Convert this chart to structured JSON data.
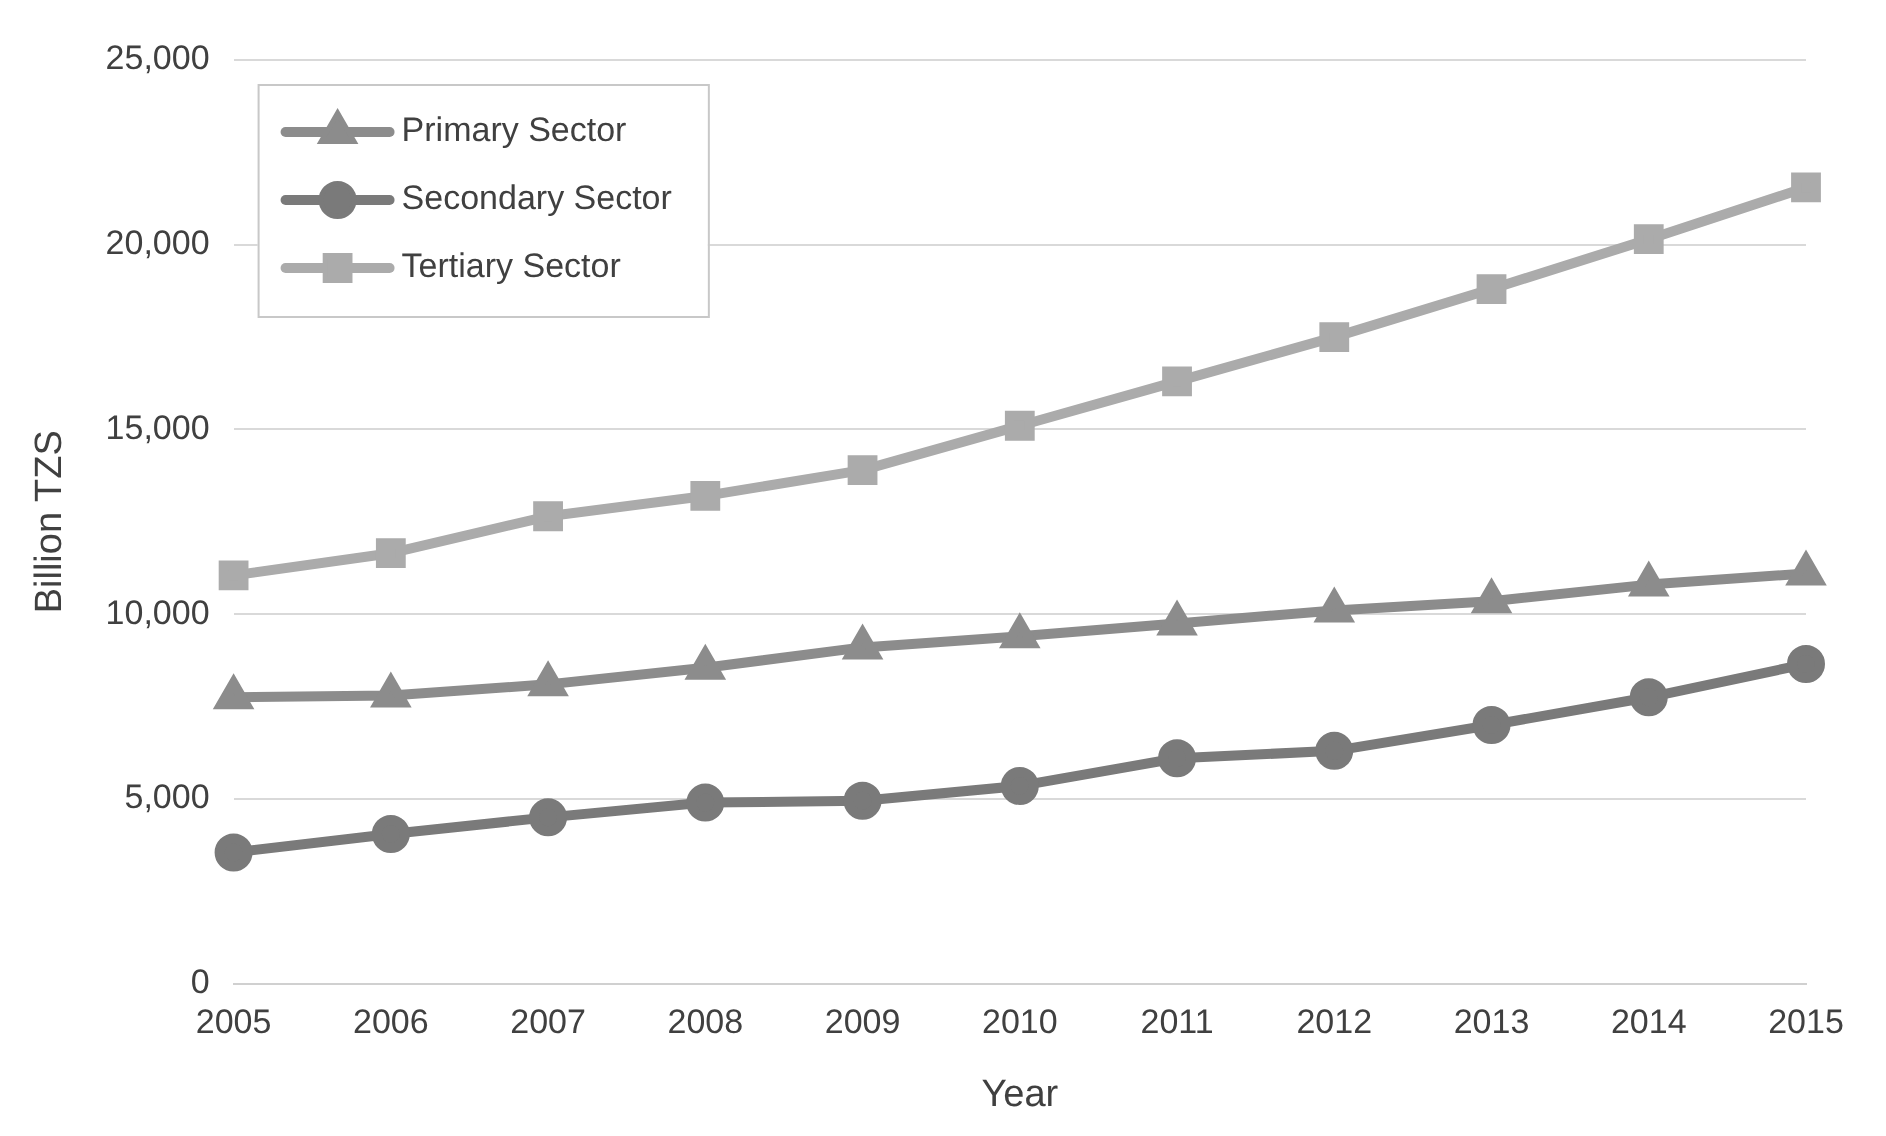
{
  "chart_data": {
    "type": "line",
    "xlabel": "Year",
    "ylabel": "Billion TZS",
    "categories": [
      "2005",
      "2006",
      "2007",
      "2008",
      "2009",
      "2010",
      "2011",
      "2012",
      "2013",
      "2014",
      "2015"
    ],
    "series": [
      {
        "name": "Primary Sector",
        "color": "#8c8c8c",
        "marker": "triangle",
        "values": [
          7750,
          7800,
          8100,
          8550,
          9100,
          9400,
          9750,
          10100,
          10350,
          10800,
          11100
        ]
      },
      {
        "name": "Secondary Sector",
        "color": "#7a7a7a",
        "marker": "circle",
        "values": [
          3550,
          4050,
          4500,
          4900,
          4950,
          5350,
          6100,
          6300,
          7000,
          7750,
          8650
        ]
      },
      {
        "name": "Tertiary Sector",
        "color": "#ababab",
        "marker": "square",
        "values": [
          11050,
          11650,
          12650,
          13200,
          13900,
          15100,
          16300,
          17500,
          18800,
          20150,
          21550
        ]
      }
    ],
    "ylim": [
      0,
      25000
    ],
    "yticks": [
      0,
      {
        "value": 5000,
        "label": "5,000"
      },
      {
        "value": 10000,
        "label": "10,000"
      },
      {
        "value": 15000,
        "label": "15,000"
      },
      {
        "value": 20000,
        "label": "20,000"
      },
      {
        "value": 25000,
        "label": "25,000"
      }
    ],
    "grid": "y",
    "legend": "top left",
    "line_style": "solid"
  }
}
